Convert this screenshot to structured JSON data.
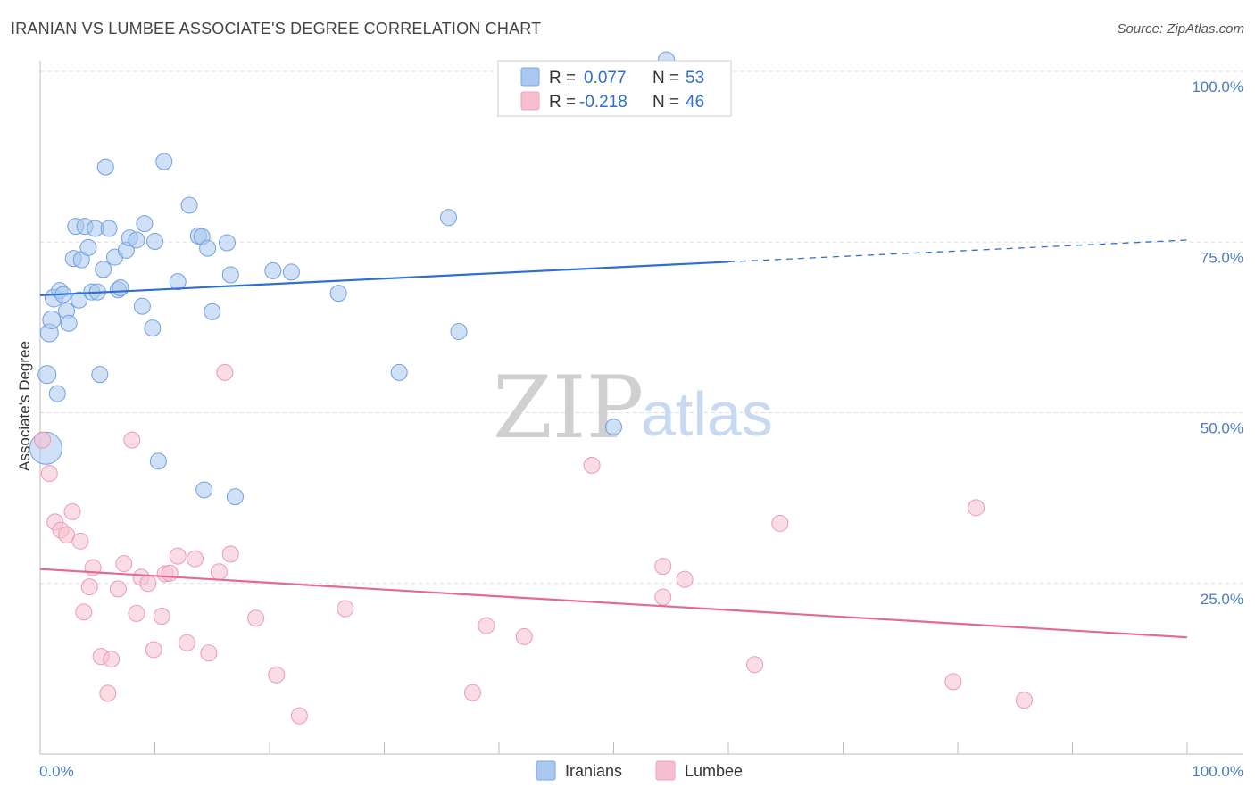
{
  "header": {
    "title": "IRANIAN VS LUMBEE ASSOCIATE'S DEGREE CORRELATION CHART",
    "source": "Source: ZipAtlas.com"
  },
  "watermark": {
    "zip": "ZIP",
    "atlas": "atlas"
  },
  "stats_legend": {
    "rows": [
      {
        "r_label": "R =",
        "r_value": "0.077",
        "n_label": "N =",
        "n_value": "53",
        "color": "#aac8f0"
      },
      {
        "r_label": "R =",
        "r_value": "-0.218",
        "n_label": "N =",
        "n_value": "46",
        "color": "#f6bfd0"
      }
    ]
  },
  "chart_data": {
    "type": "scatter",
    "title": "IRANIAN VS LUMBEE ASSOCIATE'S DEGREE CORRELATION CHART",
    "xlabel": "",
    "ylabel": "Associate's Degree",
    "xlim": [
      0,
      100
    ],
    "ylim": [
      0,
      100
    ],
    "x_tick_labels": {
      "left": "0.0%",
      "right": "100.0%"
    },
    "y_ticks": [
      {
        "value": 100,
        "label": "100.0%"
      },
      {
        "value": 75,
        "label": "75.0%"
      },
      {
        "value": 50,
        "label": "50.0%"
      },
      {
        "value": 25,
        "label": "25.0%"
      }
    ],
    "grid": true,
    "legend_position": "bottom",
    "series": [
      {
        "name": "Iranians",
        "color": "#6fa0e0",
        "fill": "#aac8f0",
        "trend": {
          "x0": 0,
          "y0": 67.2,
          "x1": 60,
          "y1": 72.1,
          "dashed_to_x": 100,
          "dashed_to_y": 75.3,
          "color": "#2f6fd0"
        },
        "points": [
          [
            0.5,
            44.8,
            18
          ],
          [
            0.6,
            55.6,
            10
          ],
          [
            0.8,
            61.7,
            10
          ],
          [
            1,
            63.6,
            10
          ],
          [
            1.2,
            66.8,
            10
          ],
          [
            1.5,
            52.8,
            9
          ],
          [
            1.7,
            67.9,
            9
          ],
          [
            2,
            67.3,
            9
          ],
          [
            2.3,
            64.9,
            9
          ],
          [
            2.5,
            63.1,
            9
          ],
          [
            2.9,
            72.6,
            9
          ],
          [
            3.1,
            77.3,
            9
          ],
          [
            3.4,
            66.5,
            9
          ],
          [
            3.6,
            72.4,
            9
          ],
          [
            3.9,
            77.3,
            9
          ],
          [
            4.2,
            74.2,
            9
          ],
          [
            4.5,
            67.7,
            9
          ],
          [
            4.8,
            77.0,
            9
          ],
          [
            5,
            67.7,
            9
          ],
          [
            5.2,
            55.6,
            9
          ],
          [
            5.5,
            71.0,
            9
          ],
          [
            5.7,
            86.0,
            9
          ],
          [
            6,
            77.0,
            9
          ],
          [
            6.5,
            72.8,
            9
          ],
          [
            6.8,
            68.0,
            9
          ],
          [
            7.0,
            68.3,
            9
          ],
          [
            7.5,
            73.8,
            9
          ],
          [
            7.8,
            75.6,
            9
          ],
          [
            8.4,
            75.3,
            9
          ],
          [
            8.9,
            65.6,
            9
          ],
          [
            9.1,
            77.7,
            9
          ],
          [
            9.8,
            62.4,
            9
          ],
          [
            10.0,
            75.1,
            9
          ],
          [
            10.3,
            42.9,
            9
          ],
          [
            10.8,
            86.8,
            9
          ],
          [
            12.0,
            69.2,
            9
          ],
          [
            13.0,
            80.4,
            9
          ],
          [
            13.8,
            75.9,
            9
          ],
          [
            14.1,
            75.8,
            9
          ],
          [
            14.3,
            38.7,
            9
          ],
          [
            14.6,
            74.1,
            9
          ],
          [
            15.0,
            64.8,
            9
          ],
          [
            16.3,
            74.9,
            9
          ],
          [
            16.6,
            70.2,
            9
          ],
          [
            17.0,
            37.7,
            9
          ],
          [
            20.3,
            70.8,
            9
          ],
          [
            21.9,
            70.6,
            9
          ],
          [
            26.0,
            67.5,
            9
          ],
          [
            31.3,
            55.9,
            9
          ],
          [
            35.6,
            78.6,
            9
          ],
          [
            36.5,
            61.9,
            9
          ],
          [
            50.0,
            47.9,
            9
          ],
          [
            54.6,
            101.7,
            9
          ]
        ]
      },
      {
        "name": "Lumbee",
        "color": "#eb9ab4",
        "fill": "#f6bfd0",
        "trend": {
          "x0": 0,
          "y0": 27.1,
          "x1": 100,
          "y1": 17.1,
          "color": "#e36a93"
        },
        "points": [
          [
            0.2,
            46.0,
            9
          ],
          [
            0.8,
            41.1,
            9
          ],
          [
            1.3,
            34.0,
            9
          ],
          [
            1.8,
            32.8,
            9
          ],
          [
            2.3,
            32.1,
            9
          ],
          [
            2.8,
            35.5,
            9
          ],
          [
            3.5,
            31.2,
            9
          ],
          [
            3.8,
            20.8,
            9
          ],
          [
            4.3,
            24.5,
            9
          ],
          [
            4.6,
            27.3,
            9
          ],
          [
            5.3,
            14.3,
            9
          ],
          [
            5.9,
            8.9,
            9
          ],
          [
            6.2,
            13.9,
            9
          ],
          [
            6.8,
            24.2,
            9
          ],
          [
            7.3,
            27.9,
            9
          ],
          [
            8.0,
            46.0,
            9
          ],
          [
            8.4,
            20.6,
            9
          ],
          [
            8.8,
            25.9,
            9
          ],
          [
            9.4,
            25.0,
            9
          ],
          [
            9.9,
            15.3,
            9
          ],
          [
            10.6,
            20.2,
            9
          ],
          [
            10.9,
            26.4,
            9
          ],
          [
            11.3,
            26.5,
            9
          ],
          [
            12.0,
            29.0,
            9
          ],
          [
            12.8,
            16.3,
            9
          ],
          [
            13.5,
            28.6,
            9
          ],
          [
            14.7,
            14.8,
            9
          ],
          [
            15.6,
            26.7,
            9
          ],
          [
            16.1,
            55.9,
            9
          ],
          [
            16.6,
            29.3,
            9
          ],
          [
            18.8,
            19.9,
            9
          ],
          [
            20.6,
            11.6,
            9
          ],
          [
            22.6,
            5.6,
            9
          ],
          [
            26.6,
            21.3,
            9
          ],
          [
            37.7,
            9.0,
            9
          ],
          [
            38.9,
            18.8,
            9
          ],
          [
            42.2,
            17.2,
            9
          ],
          [
            48.1,
            42.3,
            9
          ],
          [
            54.3,
            27.5,
            9
          ],
          [
            54.3,
            23.0,
            9
          ],
          [
            56.2,
            25.6,
            9
          ],
          [
            62.3,
            13.1,
            9
          ],
          [
            64.5,
            33.8,
            9
          ],
          [
            79.6,
            10.6,
            9
          ],
          [
            81.6,
            36.1,
            9
          ],
          [
            85.8,
            7.9,
            9
          ]
        ]
      }
    ]
  }
}
